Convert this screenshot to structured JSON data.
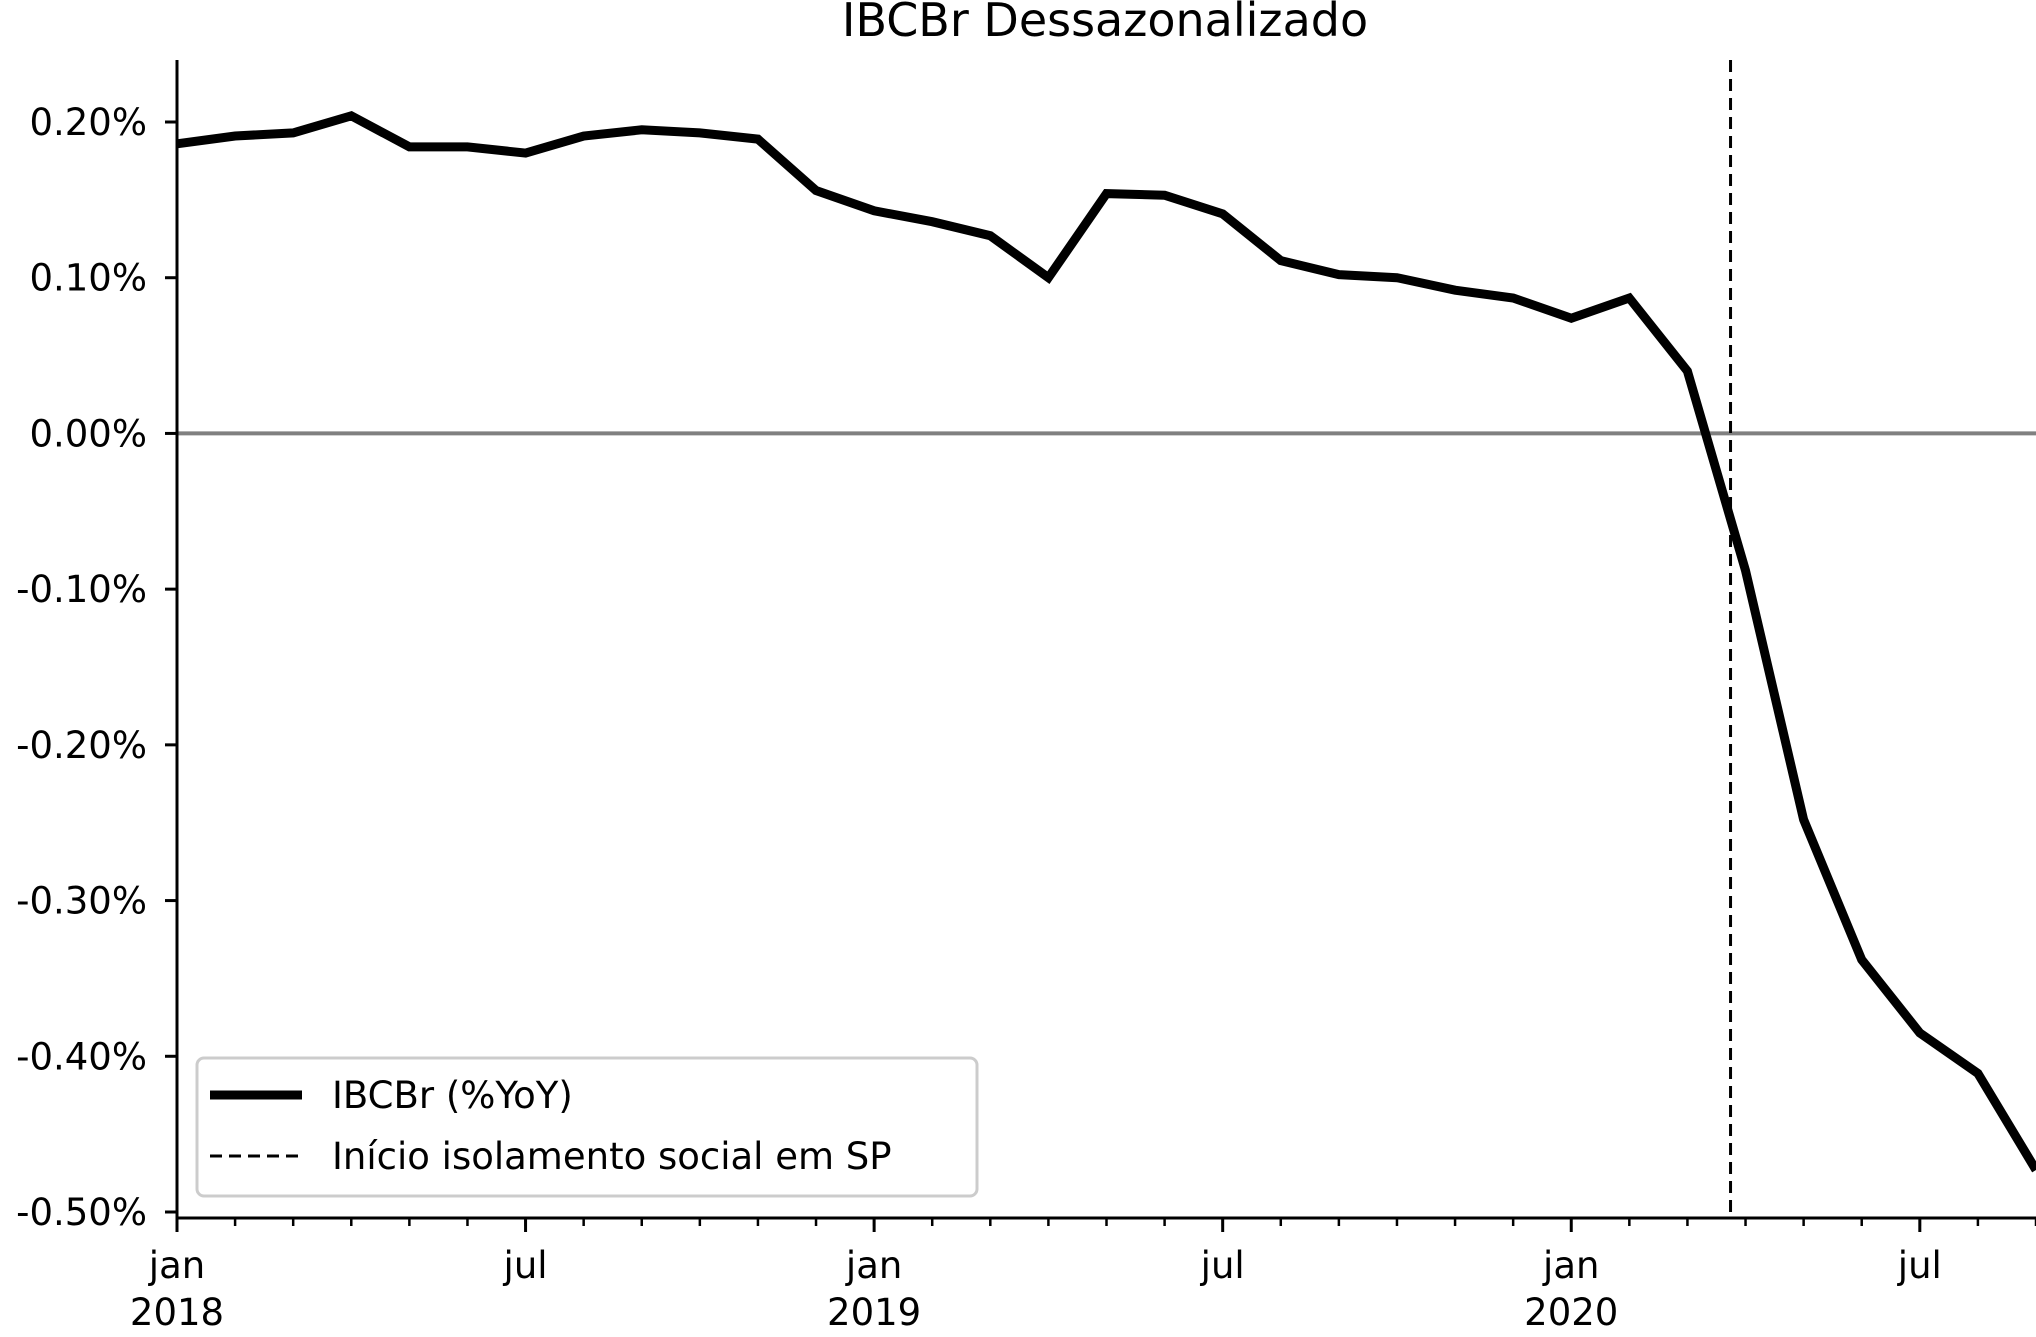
{
  "chart_data": {
    "type": "line",
    "title": "IBCBr Dessazonalizado",
    "xlabel": "",
    "ylabel": "",
    "x": [
      "2018-01",
      "2018-02",
      "2018-03",
      "2018-04",
      "2018-05",
      "2018-06",
      "2018-07",
      "2018-08",
      "2018-09",
      "2018-10",
      "2018-11",
      "2018-12",
      "2019-01",
      "2019-02",
      "2019-03",
      "2019-04",
      "2019-05",
      "2019-06",
      "2019-07",
      "2019-08",
      "2019-09",
      "2019-10",
      "2019-11",
      "2019-12",
      "2020-01",
      "2020-02",
      "2020-03",
      "2020-04",
      "2020-05",
      "2020-06",
      "2020-07",
      "2020-08",
      "2020-09"
    ],
    "xlim": [
      "2018-01",
      "2020-09"
    ],
    "ylim": [
      -0.5,
      0.24
    ],
    "series": [
      {
        "name": "IBCBr (%YoY)",
        "color": "#000000",
        "values": [
          0.186,
          0.191,
          0.193,
          0.204,
          0.184,
          0.184,
          0.18,
          0.191,
          0.195,
          0.193,
          0.189,
          0.156,
          0.143,
          0.136,
          0.127,
          0.1,
          0.154,
          0.153,
          0.141,
          0.111,
          0.102,
          0.1,
          0.092,
          0.087,
          0.074,
          0.087,
          0.04,
          -0.088,
          -0.248,
          -0.338,
          -0.385,
          -0.411,
          -0.473
        ]
      }
    ],
    "reference_lines": [
      {
        "orientation": "horizontal",
        "value": 0.0,
        "color": "#808080",
        "style": "solid"
      },
      {
        "orientation": "vertical",
        "value": "2020-03-24",
        "color": "#000000",
        "style": "dashed",
        "name": "Início isolamento social em SP"
      }
    ],
    "y_ticks": [
      {
        "value": 0.2,
        "label": "0.20%"
      },
      {
        "value": 0.1,
        "label": "0.10%"
      },
      {
        "value": 0.0,
        "label": "0.00%"
      },
      {
        "value": -0.1,
        "label": "-0.10%"
      },
      {
        "value": -0.2,
        "label": "-0.20%"
      },
      {
        "value": -0.3,
        "label": "-0.30%"
      },
      {
        "value": -0.4,
        "label": "-0.40%"
      },
      {
        "value": -0.5,
        "label": "-0.50%"
      }
    ],
    "x_ticks": [
      {
        "value": "2018-01",
        "label": "jan",
        "sublabel": "2018"
      },
      {
        "value": "2018-07",
        "label": "jul",
        "sublabel": ""
      },
      {
        "value": "2019-01",
        "label": "jan",
        "sublabel": "2019"
      },
      {
        "value": "2019-07",
        "label": "jul",
        "sublabel": ""
      },
      {
        "value": "2020-01",
        "label": "jan",
        "sublabel": "2020"
      },
      {
        "value": "2020-07",
        "label": "jul",
        "sublabel": ""
      }
    ],
    "legend": {
      "position": "lower-left",
      "entries": [
        {
          "label": "IBCBr (%YoY)",
          "style": "solid"
        },
        {
          "label": "Início isolamento social em SP",
          "style": "dashed"
        }
      ]
    },
    "grid": false
  }
}
